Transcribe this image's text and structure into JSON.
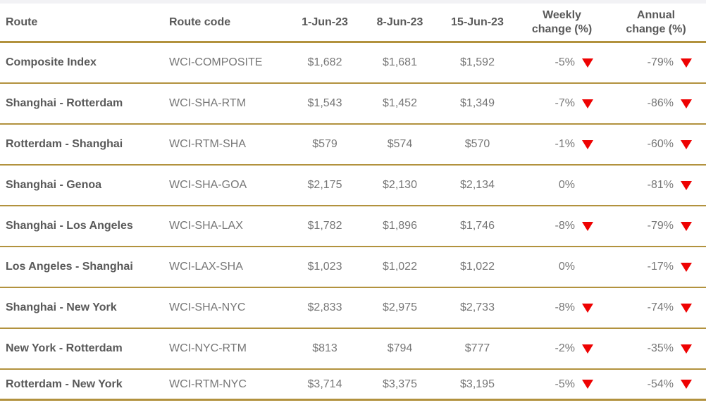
{
  "colors": {
    "gold": "#b2923e",
    "red": "#ee0202",
    "header_text": "#595959",
    "value_text": "#777777",
    "top_strip": "#f2f2f5"
  },
  "icons": {
    "down_arrow": "red-down-triangle"
  },
  "table": {
    "columns": [
      {
        "key": "route",
        "label": "Route"
      },
      {
        "key": "code",
        "label": "Route code"
      },
      {
        "key": "d1",
        "label": "1-Jun-23"
      },
      {
        "key": "d2",
        "label": "8-Jun-23"
      },
      {
        "key": "d3",
        "label": "15-Jun-23"
      },
      {
        "key": "weekly",
        "label": "Weekly\nchange (%)"
      },
      {
        "key": "annual",
        "label": "Annual\nchange (%)"
      }
    ],
    "rows": [
      {
        "route": "Composite Index",
        "code": "WCI-COMPOSITE",
        "d1": "$1,682",
        "d2": "$1,681",
        "d3": "$1,592",
        "weekly": "-5%",
        "weekly_arrow": "down",
        "annual": "-79%",
        "annual_arrow": "down"
      },
      {
        "route": "Shanghai - Rotterdam",
        "code": "WCI-SHA-RTM",
        "d1": "$1,543",
        "d2": "$1,452",
        "d3": "$1,349",
        "weekly": "-7%",
        "weekly_arrow": "down",
        "annual": "-86%",
        "annual_arrow": "down"
      },
      {
        "route": "Rotterdam - Shanghai",
        "code": "WCI-RTM-SHA",
        "d1": "$579",
        "d2": "$574",
        "d3": "$570",
        "weekly": "-1%",
        "weekly_arrow": "down",
        "annual": "-60%",
        "annual_arrow": "down"
      },
      {
        "route": "Shanghai - Genoa",
        "code": "WCI-SHA-GOA",
        "d1": "$2,175",
        "d2": "$2,130",
        "d3": "$2,134",
        "weekly": "0%",
        "weekly_arrow": "",
        "annual": "-81%",
        "annual_arrow": "down"
      },
      {
        "route": "Shanghai - Los Angeles",
        "code": "WCI-SHA-LAX",
        "d1": "$1,782",
        "d2": "$1,896",
        "d3": "$1,746",
        "weekly": "-8%",
        "weekly_arrow": "down",
        "annual": "-79%",
        "annual_arrow": "down"
      },
      {
        "route": "Los Angeles - Shanghai",
        "code": "WCI-LAX-SHA",
        "d1": "$1,023",
        "d2": "$1,022",
        "d3": "$1,022",
        "weekly": "0%",
        "weekly_arrow": "",
        "annual": "-17%",
        "annual_arrow": "down"
      },
      {
        "route": "Shanghai - New York",
        "code": "WCI-SHA-NYC",
        "d1": "$2,833",
        "d2": "$2,975",
        "d3": "$2,733",
        "weekly": "-8%",
        "weekly_arrow": "down",
        "annual": "-74%",
        "annual_arrow": "down"
      },
      {
        "route": "New York - Rotterdam",
        "code": "WCI-NYC-RTM",
        "d1": "$813",
        "d2": "$794",
        "d3": "$777",
        "weekly": "-2%",
        "weekly_arrow": "down",
        "annual": "-35%",
        "annual_arrow": "down"
      },
      {
        "route": "Rotterdam - New York",
        "code": "WCI-RTM-NYC",
        "d1": "$3,714",
        "d2": "$3,375",
        "d3": "$3,195",
        "weekly": "-5%",
        "weekly_arrow": "down",
        "annual": "-54%",
        "annual_arrow": "down"
      }
    ]
  },
  "chart_data": {
    "type": "table",
    "title": "",
    "columns": [
      "Route",
      "Route code",
      "1-Jun-23",
      "8-Jun-23",
      "15-Jun-23",
      "Weekly change (%)",
      "Annual change (%)"
    ],
    "rows": [
      [
        "Composite Index",
        "WCI-COMPOSITE",
        1682,
        1681,
        1592,
        -5,
        -79
      ],
      [
        "Shanghai - Rotterdam",
        "WCI-SHA-RTM",
        1543,
        1452,
        1349,
        -7,
        -86
      ],
      [
        "Rotterdam - Shanghai",
        "WCI-RTM-SHA",
        579,
        574,
        570,
        -1,
        -60
      ],
      [
        "Shanghai - Genoa",
        "WCI-SHA-GOA",
        2175,
        2130,
        2134,
        0,
        -81
      ],
      [
        "Shanghai - Los Angeles",
        "WCI-SHA-LAX",
        1782,
        1896,
        1746,
        -8,
        -79
      ],
      [
        "Los Angeles - Shanghai",
        "WCI-LAX-SHA",
        1023,
        1022,
        1022,
        0,
        -17
      ],
      [
        "Shanghai - New York",
        "WCI-SHA-NYC",
        2833,
        2975,
        2733,
        -8,
        -74
      ],
      [
        "New York - Rotterdam",
        "WCI-NYC-RTM",
        813,
        794,
        777,
        -2,
        -35
      ],
      [
        "Rotterdam - New York",
        "WCI-RTM-NYC",
        3714,
        3375,
        3195,
        -5,
        -54
      ]
    ],
    "notes": "Values in USD; negative weekly/annual changes marked with red down triangles; 0% rows have no triangle."
  }
}
